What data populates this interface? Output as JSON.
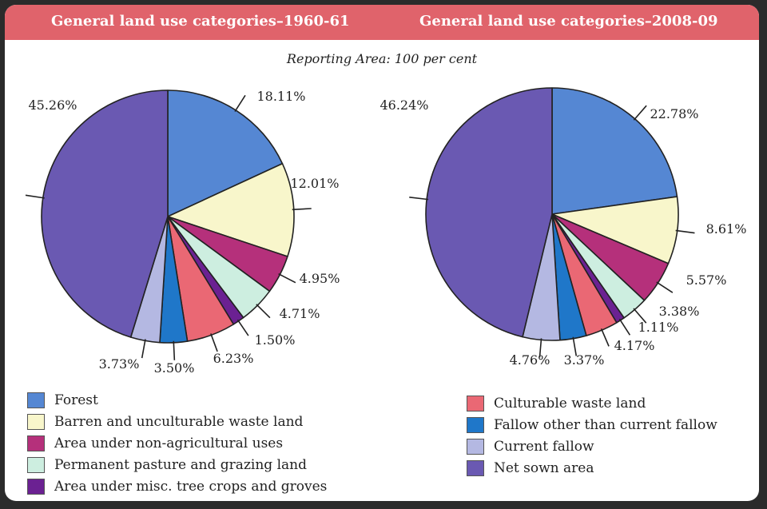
{
  "headers": {
    "left": "General land use categories–1960-61",
    "right": "General land use categories–2008-09"
  },
  "subtitle": "Reporting Area: 100 per cent",
  "categories": [
    {
      "name": "Forest",
      "color": "#5587d3"
    },
    {
      "name": "Barren and unculturable waste land",
      "color": "#f8f6cb"
    },
    {
      "name": "Area under non-agricultural uses",
      "color": "#b5307b"
    },
    {
      "name": "Permanent pasture and grazing land",
      "color": "#cdeee0"
    },
    {
      "name": "Area under misc. tree crops and groves",
      "color": "#6b2192"
    },
    {
      "name": "Culturable waste land",
      "color": "#ea6874"
    },
    {
      "name": "Fallow other than current fallow",
      "color": "#1f77c9"
    },
    {
      "name": "Current fallow",
      "color": "#b4b8e2"
    },
    {
      "name": "Net sown area",
      "color": "#6a59b2"
    }
  ],
  "chart_data": [
    {
      "type": "pie",
      "title": "General land use categories–1960-61",
      "labels": [
        "Forest",
        "Barren and unculturable waste land",
        "Area under non-agricultural uses",
        "Permanent pasture and grazing land",
        "Area under misc. tree crops and groves",
        "Culturable waste land",
        "Fallow other than current fallow",
        "Current fallow",
        "Net sown area"
      ],
      "values": [
        18.11,
        12.01,
        4.95,
        4.71,
        1.5,
        6.23,
        3.5,
        3.73,
        45.26
      ],
      "value_labels": [
        "18.11%",
        "12.01%",
        "4.95%",
        "4.71%",
        "1.50%",
        "6.23%",
        "3.50%",
        "3.73%",
        "45.26%"
      ]
    },
    {
      "type": "pie",
      "title": "General land use categories–2008-09",
      "labels": [
        "Forest",
        "Barren and unculturable waste land",
        "Area under non-agricultural uses",
        "Permanent pasture and grazing land",
        "Area under misc. tree crops and groves",
        "Culturable waste land",
        "Fallow other than current fallow",
        "Current fallow",
        "Net sown area"
      ],
      "values": [
        22.78,
        8.61,
        5.57,
        3.38,
        1.11,
        4.17,
        3.37,
        4.76,
        46.24
      ],
      "value_labels": [
        "22.78%",
        "8.61%",
        "5.57%",
        "3.38%",
        "1.11%",
        "4.17%",
        "3.37%",
        "4.76%",
        "46.24%"
      ]
    }
  ]
}
